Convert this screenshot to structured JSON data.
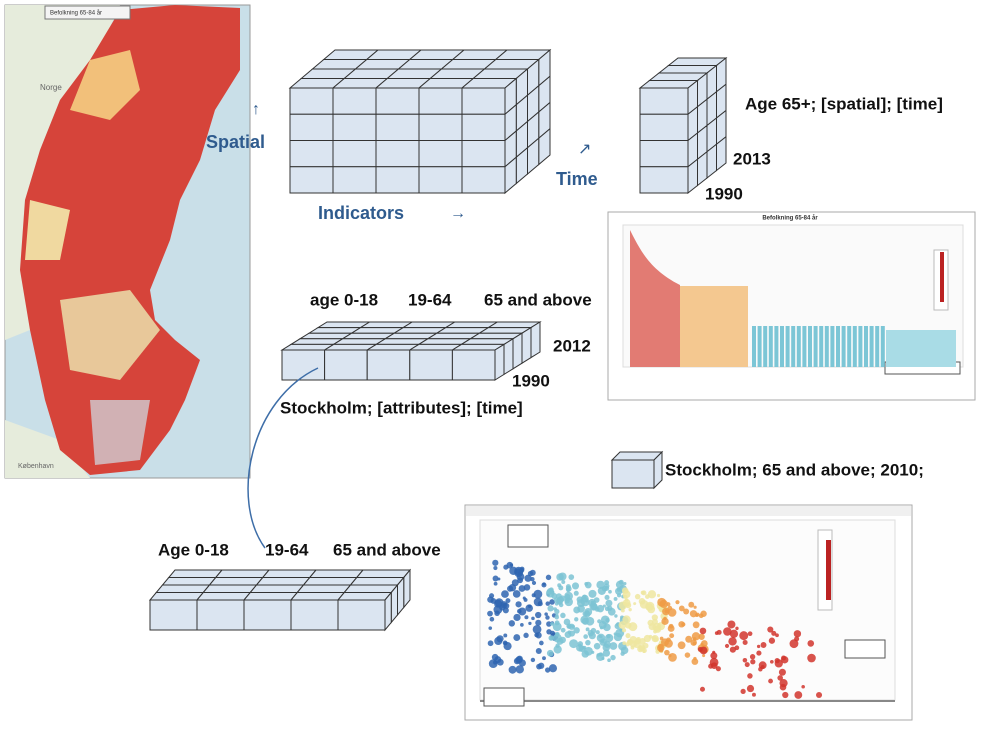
{
  "map": {
    "title": "Befolkning 65-84 år",
    "labels": [
      "Norge",
      "København"
    ]
  },
  "cube_indicators": {
    "spatial": "Spatial",
    "indicators": "Indicators",
    "time": "Time"
  },
  "cube_age65": {
    "label": "Age 65+; [spatial]; [time]",
    "years": [
      "2013",
      "1990"
    ]
  },
  "cube_stockholm": {
    "columns": [
      "age 0-18",
      "19-64",
      "65 and above"
    ],
    "years": [
      "2012",
      "1990"
    ],
    "label": "Stockholm; [attributes]; [time]"
  },
  "cell": {
    "label": "Stockholm; 65 and above; 2010;"
  },
  "slice": {
    "columns": [
      "Age 0-18",
      "19-64",
      "65 and above"
    ]
  },
  "bar_chart": {
    "title": "Befolkning 65-84 år"
  }
}
